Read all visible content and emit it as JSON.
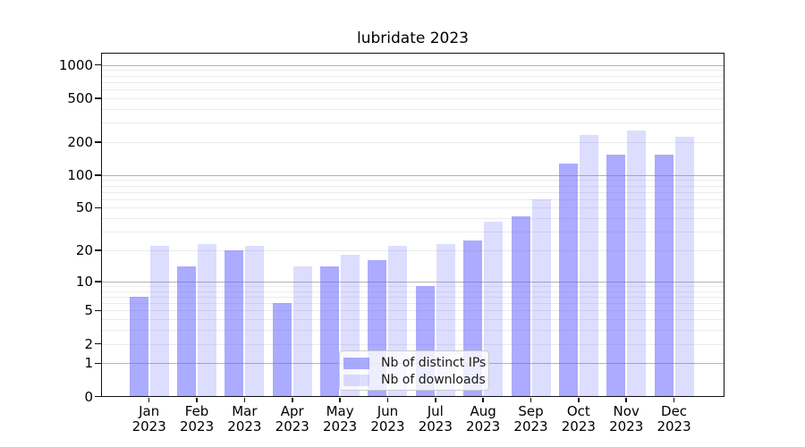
{
  "chart_data": {
    "type": "bar",
    "title": "lubridate 2023",
    "categories": [
      "Jan 2023",
      "Feb 2023",
      "Mar 2023",
      "Apr 2023",
      "May 2023",
      "Jun 2023",
      "Jul 2023",
      "Aug 2023",
      "Sep 2023",
      "Oct 2023",
      "Nov 2023",
      "Dec 2023"
    ],
    "series": [
      {
        "name": "Nb of distinct IPs",
        "color": "#6666ff",
        "alpha": 0.55,
        "values": [
          7,
          14,
          20,
          6,
          14,
          16,
          9,
          25,
          42,
          127,
          153,
          153
        ]
      },
      {
        "name": "Nb of downloads",
        "color": "#6666ff",
        "alpha": 0.22,
        "values": [
          22,
          23,
          22,
          14,
          18,
          22,
          23,
          37,
          60,
          230,
          252,
          223
        ]
      }
    ],
    "xlabel": "",
    "ylabel": "",
    "yscale": "log1p",
    "yticks": [
      0,
      1,
      2,
      5,
      10,
      20,
      50,
      100,
      200,
      500,
      1000
    ],
    "ylim": [
      0,
      1345
    ],
    "grid": true,
    "legend_position": "lower-center",
    "colors": {
      "major_grid": "#b3b3b3",
      "minor_grid": "#ebebeb",
      "axis": "#111111",
      "text": "#000000"
    }
  }
}
